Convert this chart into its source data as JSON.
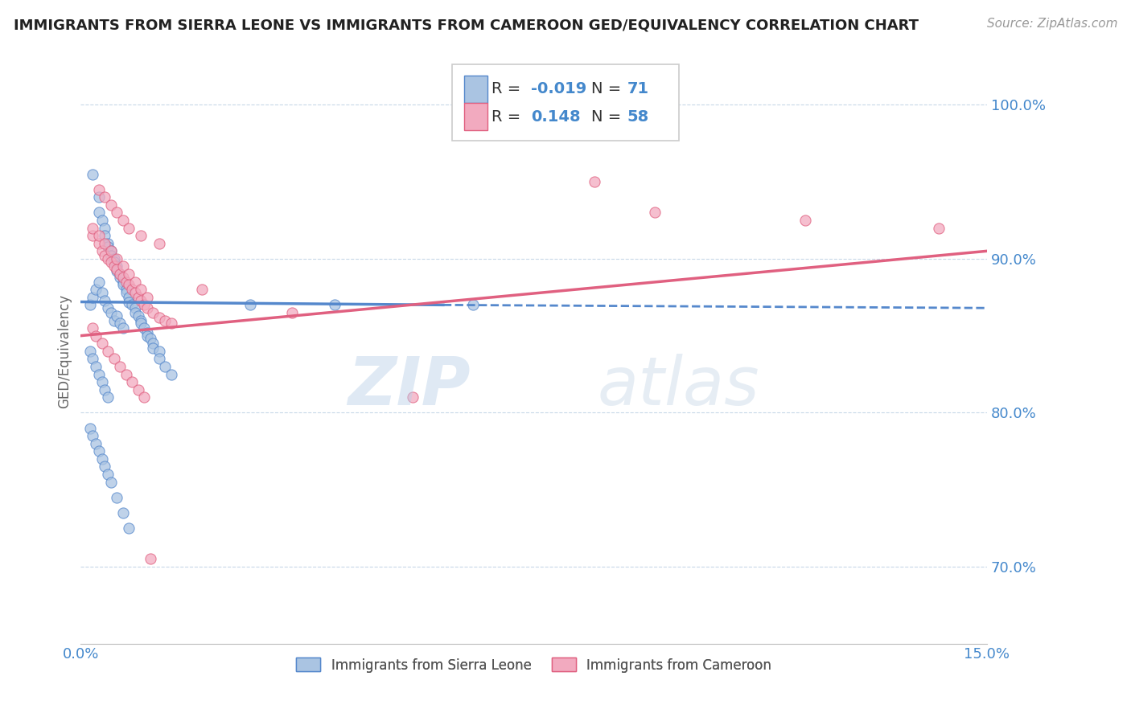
{
  "title": "IMMIGRANTS FROM SIERRA LEONE VS IMMIGRANTS FROM CAMEROON GED/EQUIVALENCY CORRELATION CHART",
  "source": "Source: ZipAtlas.com",
  "ylabel": "GED/Equivalency",
  "xlim": [
    0.0,
    15.0
  ],
  "ylim": [
    65.0,
    103.0
  ],
  "yticks": [
    70.0,
    80.0,
    90.0,
    100.0
  ],
  "legend_r_blue": "-0.019",
  "legend_n_blue": "71",
  "legend_r_pink": "0.148",
  "legend_n_pink": "58",
  "legend_label_blue": "Immigrants from Sierra Leone",
  "legend_label_pink": "Immigrants from Cameroon",
  "blue_color": "#aac4e2",
  "pink_color": "#f2aabf",
  "blue_line_color": "#5588cc",
  "pink_line_color": "#e06080",
  "title_color": "#222222",
  "axis_color": "#4488cc",
  "blue_scatter_x": [
    0.2,
    0.3,
    0.3,
    0.35,
    0.4,
    0.4,
    0.45,
    0.45,
    0.5,
    0.5,
    0.55,
    0.55,
    0.6,
    0.6,
    0.65,
    0.65,
    0.7,
    0.7,
    0.75,
    0.75,
    0.8,
    0.8,
    0.85,
    0.9,
    0.9,
    0.95,
    1.0,
    1.0,
    1.05,
    1.1,
    1.1,
    1.15,
    1.2,
    1.2,
    1.3,
    1.3,
    1.4,
    1.5,
    0.15,
    0.2,
    0.25,
    0.3,
    0.35,
    0.4,
    0.45,
    0.5,
    0.55,
    0.6,
    0.65,
    0.7,
    0.15,
    0.2,
    0.25,
    0.3,
    0.35,
    0.4,
    0.45,
    2.8,
    4.2,
    6.5,
    0.15,
    0.2,
    0.25,
    0.3,
    0.35,
    0.4,
    0.45,
    0.5,
    0.6,
    0.7,
    0.8
  ],
  "blue_scatter_y": [
    95.5,
    94.0,
    93.0,
    92.5,
    92.0,
    91.5,
    91.0,
    90.8,
    90.5,
    90.2,
    90.0,
    89.8,
    89.5,
    89.2,
    89.0,
    88.8,
    88.5,
    88.3,
    88.0,
    87.8,
    87.5,
    87.2,
    87.0,
    86.8,
    86.5,
    86.3,
    86.0,
    85.8,
    85.5,
    85.2,
    85.0,
    84.8,
    84.5,
    84.2,
    84.0,
    83.5,
    83.0,
    82.5,
    87.0,
    87.5,
    88.0,
    88.5,
    87.8,
    87.3,
    86.8,
    86.5,
    86.0,
    86.3,
    85.8,
    85.5,
    84.0,
    83.5,
    83.0,
    82.5,
    82.0,
    81.5,
    81.0,
    87.0,
    87.0,
    87.0,
    79.0,
    78.5,
    78.0,
    77.5,
    77.0,
    76.5,
    76.0,
    75.5,
    74.5,
    73.5,
    72.5
  ],
  "pink_scatter_x": [
    0.2,
    0.3,
    0.35,
    0.4,
    0.45,
    0.5,
    0.55,
    0.6,
    0.65,
    0.7,
    0.75,
    0.8,
    0.85,
    0.9,
    0.95,
    1.0,
    1.05,
    1.1,
    1.2,
    1.3,
    1.4,
    1.5,
    0.2,
    0.3,
    0.4,
    0.5,
    0.6,
    0.7,
    0.8,
    0.9,
    1.0,
    1.1,
    0.3,
    0.4,
    0.5,
    0.6,
    0.7,
    0.8,
    1.0,
    1.3,
    2.0,
    3.5,
    5.5,
    8.5,
    9.5,
    12.0,
    14.2,
    0.2,
    0.25,
    0.35,
    0.45,
    0.55,
    0.65,
    0.75,
    0.85,
    0.95,
    1.05,
    1.15
  ],
  "pink_scatter_y": [
    91.5,
    91.0,
    90.5,
    90.2,
    90.0,
    89.8,
    89.5,
    89.3,
    89.0,
    88.8,
    88.5,
    88.3,
    88.0,
    87.8,
    87.5,
    87.3,
    87.0,
    86.8,
    86.5,
    86.2,
    86.0,
    85.8,
    92.0,
    91.5,
    91.0,
    90.5,
    90.0,
    89.5,
    89.0,
    88.5,
    88.0,
    87.5,
    94.5,
    94.0,
    93.5,
    93.0,
    92.5,
    92.0,
    91.5,
    91.0,
    88.0,
    86.5,
    81.0,
    95.0,
    93.0,
    92.5,
    92.0,
    85.5,
    85.0,
    84.5,
    84.0,
    83.5,
    83.0,
    82.5,
    82.0,
    81.5,
    81.0,
    70.5
  ]
}
